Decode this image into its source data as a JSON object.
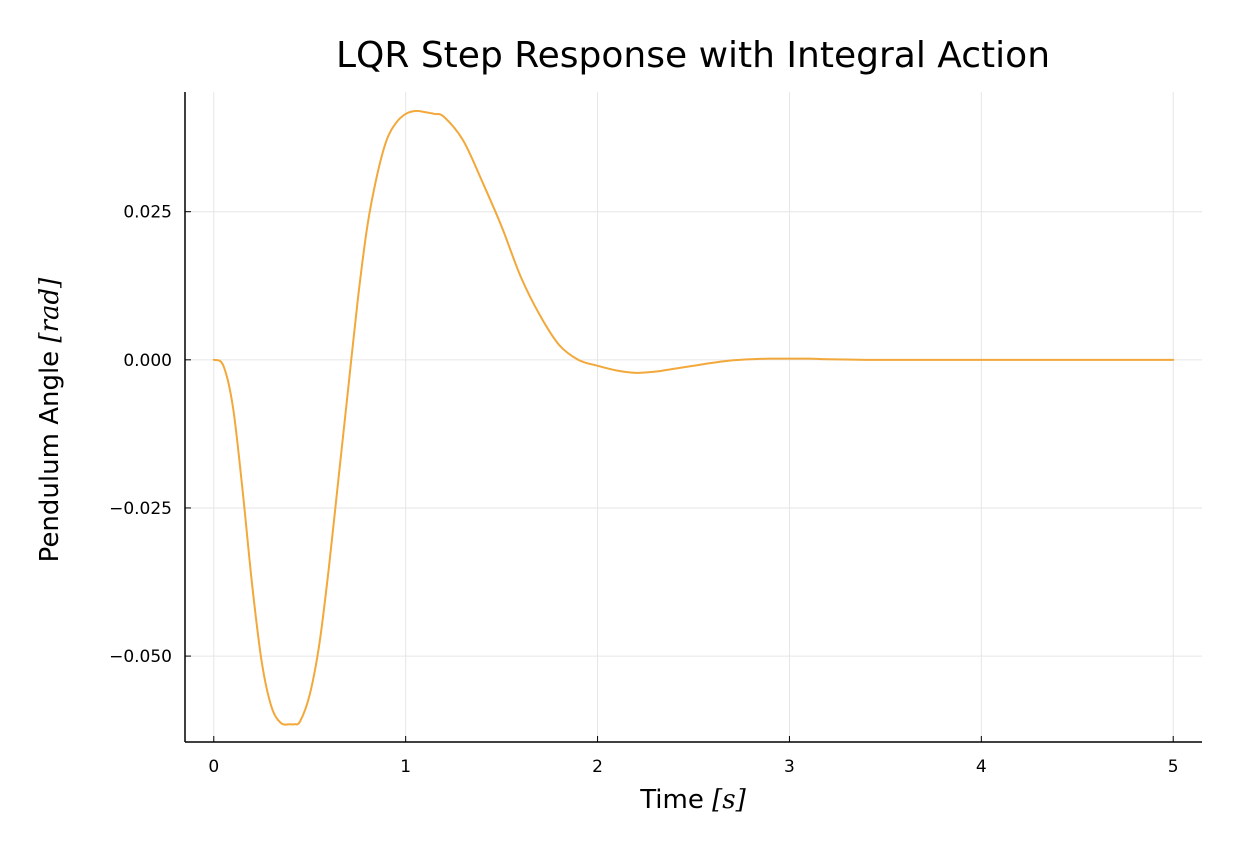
{
  "chart_data": {
    "type": "line",
    "title": "LQR Step Response with Integral Action",
    "xlabel_text": "Time ",
    "xlabel_math": "[s]",
    "ylabel_text": "Pendulum Angle ",
    "ylabel_math": "[rad]",
    "xlim": [
      -0.15,
      5.15
    ],
    "ylim": [
      -0.0645,
      0.0452
    ],
    "x_ticks": [
      0,
      1,
      2,
      3,
      4,
      5
    ],
    "x_tick_labels": [
      "0",
      "1",
      "2",
      "3",
      "4",
      "5"
    ],
    "y_ticks": [
      -0.05,
      -0.025,
      0.0,
      0.025
    ],
    "y_tick_labels": [
      "−0.050",
      "−0.025",
      "0.000",
      "0.025"
    ],
    "grid": true,
    "legend": "none",
    "series": [
      {
        "color": "#f2a83a",
        "x": [
          0,
          0.05,
          0.1,
          0.15,
          0.2,
          0.25,
          0.3,
          0.35,
          0.4,
          0.42,
          0.45,
          0.5,
          0.55,
          0.6,
          0.65,
          0.7,
          0.75,
          0.8,
          0.85,
          0.9,
          0.95,
          1.0,
          1.05,
          1.1,
          1.15,
          1.2,
          1.3,
          1.4,
          1.5,
          1.6,
          1.7,
          1.8,
          1.9,
          2.0,
          2.1,
          2.2,
          2.3,
          2.4,
          2.5,
          2.6,
          2.7,
          2.8,
          2.9,
          3.0,
          3.1,
          3.2,
          3.4,
          3.6,
          3.8,
          4.0,
          4.5,
          5.0
        ],
        "y": [
          0.0,
          -0.001,
          -0.008,
          -0.022,
          -0.038,
          -0.051,
          -0.0585,
          -0.0613,
          -0.0615,
          -0.0615,
          -0.061,
          -0.0565,
          -0.048,
          -0.035,
          -0.02,
          -0.005,
          0.01,
          0.0225,
          0.031,
          0.037,
          0.04,
          0.0415,
          0.042,
          0.0418,
          0.0415,
          0.041,
          0.037,
          0.03,
          0.0225,
          0.014,
          0.0075,
          0.0025,
          0.0,
          -0.001,
          -0.0018,
          -0.0022,
          -0.002,
          -0.0015,
          -0.001,
          -0.0005,
          -0.0001,
          0.0001,
          0.0002,
          0.0002,
          0.0002,
          0.0001,
          0.0,
          0.0,
          0.0,
          0.0,
          0.0,
          0.0
        ]
      }
    ]
  }
}
